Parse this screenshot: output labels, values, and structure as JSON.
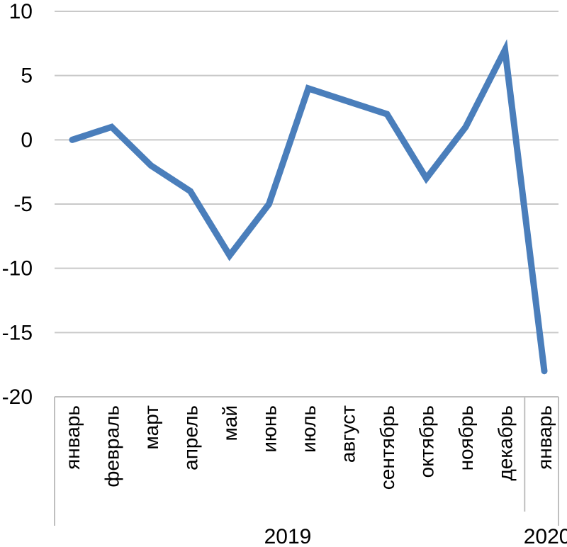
{
  "chart_data": {
    "type": "line",
    "title": "",
    "xlabel": "",
    "ylabel": "",
    "ylim": [
      -20,
      10
    ],
    "yticks": [
      10,
      5,
      0,
      -5,
      -10,
      -15,
      -20
    ],
    "ytick_labels": [
      "10",
      "5",
      "0",
      "-5",
      "-10",
      "-15",
      "-20"
    ],
    "grid": true,
    "legend": "none",
    "categories": [
      "январь",
      "февраль",
      "март",
      "апрель",
      "май",
      "июнь",
      "июль",
      "август",
      "сентябрь",
      "октябрь",
      "ноябрь",
      "декабрь",
      "январь"
    ],
    "groups": [
      {
        "label": "2019",
        "start": 0,
        "end": 11
      },
      {
        "label": "2020",
        "start": 12,
        "end": 12
      }
    ],
    "series": [
      {
        "values": [
          0,
          1,
          -2,
          -4,
          -9,
          -5,
          4,
          3,
          2,
          -3,
          1,
          7,
          -18
        ],
        "color": "#4a7ebb"
      }
    ]
  }
}
